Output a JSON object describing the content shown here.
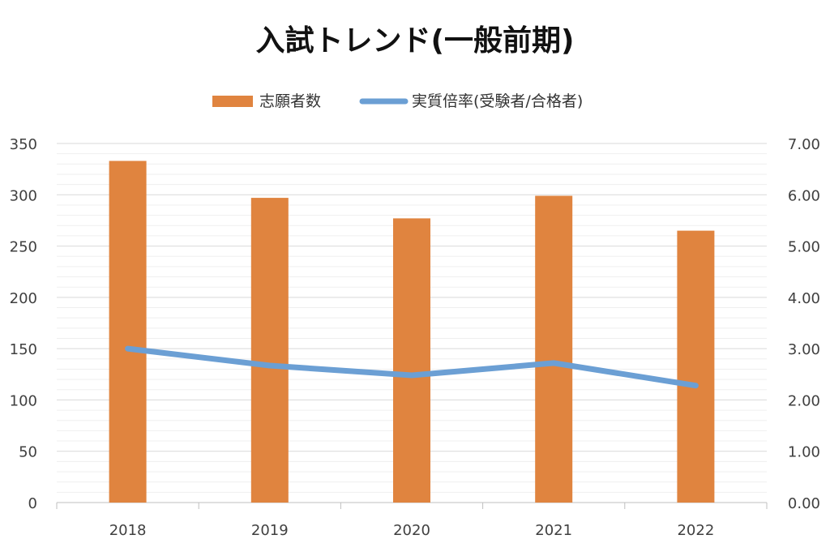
{
  "chart_data": {
    "type": "bar+line",
    "title": "入試トレンド(一般前期)",
    "categories": [
      "2018",
      "2019",
      "2020",
      "2021",
      "2022"
    ],
    "series": [
      {
        "name": "志願者数",
        "type": "bar",
        "axis": "left",
        "color": "#E0843F",
        "values": [
          333,
          297,
          277,
          299,
          265
        ]
      },
      {
        "name": "実質倍率(受験者/合格者)",
        "type": "line",
        "axis": "right",
        "color": "#6B9FD4",
        "values": [
          3.0,
          2.67,
          2.48,
          2.72,
          2.28
        ]
      }
    ],
    "y_left": {
      "range": [
        0,
        350
      ],
      "ticks": [
        "0",
        "50",
        "100",
        "150",
        "200",
        "250",
        "300",
        "350"
      ]
    },
    "y_right": {
      "range": [
        0,
        7
      ],
      "ticks": [
        "0.00",
        "1.00",
        "2.00",
        "3.00",
        "4.00",
        "5.00",
        "6.00",
        "7.00"
      ]
    },
    "grid": true,
    "legend_position": "top"
  }
}
